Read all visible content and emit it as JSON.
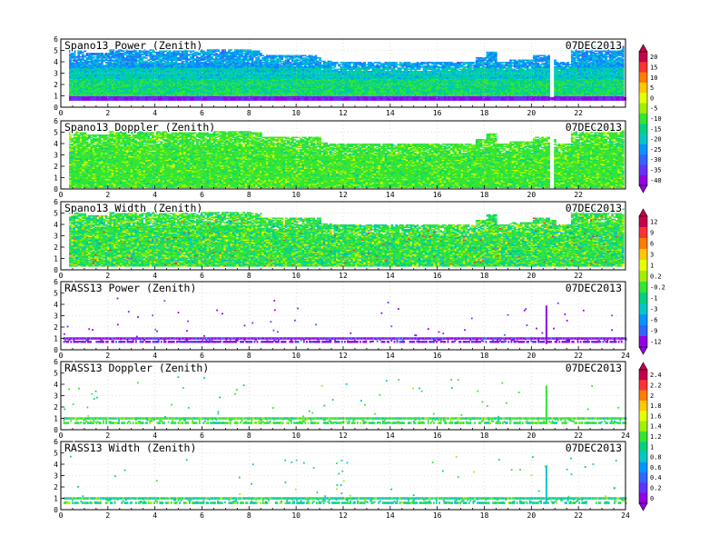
{
  "chart_data": [
    {
      "type": "heatmap",
      "title": "Spano13 Power (Zenith)",
      "date": "07DEC2013",
      "x_ticks": [
        "0",
        "2",
        "4",
        "6",
        "8",
        "10",
        "12",
        "14",
        "16",
        "18",
        "20",
        "22"
      ],
      "y_ticks": [
        "0",
        "1",
        "2",
        "3",
        "4",
        "5",
        "6"
      ],
      "xlim": [
        0,
        24
      ],
      "ylim": [
        0,
        6
      ],
      "grid": true,
      "fill": "power",
      "colorbar": "A",
      "top_profile": [
        [
          0,
          5.0
        ],
        [
          1,
          4.7
        ],
        [
          2,
          5.0
        ],
        [
          8,
          4.9
        ],
        [
          8.5,
          4.6
        ],
        [
          9,
          4.6
        ],
        [
          11,
          4.1
        ],
        [
          11.5,
          4.0
        ],
        [
          13,
          4.0
        ],
        [
          15,
          4.0
        ],
        [
          17,
          4.0
        ],
        [
          17.6,
          4.4
        ],
        [
          18,
          4.8
        ],
        [
          18.5,
          4.0
        ],
        [
          19,
          4.2
        ],
        [
          20,
          4.6
        ],
        [
          20.7,
          4.4
        ],
        [
          21,
          4.0
        ],
        [
          21.6,
          5.0
        ],
        [
          22.5,
          5.3
        ],
        [
          24,
          5.0
        ]
      ],
      "bottom": 0.6
    },
    {
      "type": "heatmap",
      "title": "Spano13 Doppler (Zenith)",
      "date": "07DEC2013",
      "x_ticks": [
        "0",
        "2",
        "4",
        "6",
        "8",
        "10",
        "12",
        "14",
        "16",
        "18",
        "20",
        "22"
      ],
      "y_ticks": [
        "0",
        "1",
        "2",
        "3",
        "4",
        "5",
        "6"
      ],
      "xlim": [
        0,
        24
      ],
      "ylim": [
        0,
        6
      ],
      "grid": true,
      "fill": "doppler",
      "colorbar": "A",
      "top_profile": [
        [
          0,
          5.0
        ],
        [
          1,
          4.7
        ],
        [
          2,
          5.0
        ],
        [
          8,
          4.9
        ],
        [
          8.5,
          4.6
        ],
        [
          9,
          4.6
        ],
        [
          11,
          4.1
        ],
        [
          11.5,
          4.0
        ],
        [
          13,
          4.0
        ],
        [
          15,
          4.0
        ],
        [
          17,
          4.0
        ],
        [
          17.6,
          4.4
        ],
        [
          18,
          4.8
        ],
        [
          18.5,
          4.0
        ],
        [
          19,
          4.2
        ],
        [
          20,
          4.6
        ],
        [
          20.7,
          4.4
        ],
        [
          21,
          4.0
        ],
        [
          21.6,
          5.0
        ],
        [
          22.5,
          5.3
        ],
        [
          24,
          5.0
        ]
      ],
      "bottom": 0.1
    },
    {
      "type": "heatmap",
      "title": "Spano13 Width (Zenith)",
      "date": "07DEC2013",
      "x_ticks": [
        "0",
        "2",
        "4",
        "6",
        "8",
        "10",
        "12",
        "14",
        "16",
        "18",
        "20",
        "22"
      ],
      "y_ticks": [
        "0",
        "1",
        "2",
        "3",
        "4",
        "5",
        "6"
      ],
      "xlim": [
        0,
        24
      ],
      "ylim": [
        0,
        6
      ],
      "grid": true,
      "fill": "width",
      "colorbar": "B",
      "top_profile": [
        [
          0,
          5.0
        ],
        [
          1,
          4.7
        ],
        [
          2,
          5.0
        ],
        [
          8,
          4.9
        ],
        [
          8.5,
          4.6
        ],
        [
          9,
          4.6
        ],
        [
          11,
          4.1
        ],
        [
          11.5,
          4.0
        ],
        [
          13,
          4.0
        ],
        [
          15,
          4.0
        ],
        [
          17,
          4.0
        ],
        [
          17.6,
          4.4
        ],
        [
          18,
          4.8
        ],
        [
          18.5,
          4.0
        ],
        [
          19,
          4.2
        ],
        [
          20,
          4.6
        ],
        [
          20.7,
          4.4
        ],
        [
          21,
          4.0
        ],
        [
          21.6,
          5.0
        ],
        [
          22.5,
          5.3
        ],
        [
          24,
          5.0
        ]
      ],
      "bottom": 0.3
    },
    {
      "type": "heatmap",
      "title": "RASS13 Power (Zenith)",
      "date": "07DEC2013",
      "x_ticks": [
        "0",
        "2",
        "4",
        "6",
        "8",
        "10",
        "12",
        "14",
        "16",
        "18",
        "20",
        "22",
        "24"
      ],
      "y_ticks": [
        "0",
        "1",
        "2",
        "3",
        "4",
        "5",
        "6"
      ],
      "xlim": [
        0,
        24
      ],
      "ylim": [
        0,
        6
      ],
      "grid": true,
      "fill": "rass_power",
      "colorbar": "B",
      "band_low": 0.8,
      "band_high": 1.1,
      "spike_x": 20.6
    },
    {
      "type": "heatmap",
      "title": "RASS13 Doppler (Zenith)",
      "date": "07DEC2013",
      "x_ticks": [
        "0",
        "2",
        "4",
        "6",
        "8",
        "10",
        "12",
        "14",
        "16",
        "18",
        "20",
        "22",
        "24"
      ],
      "y_ticks": [
        "0",
        "1",
        "2",
        "3",
        "4",
        "5",
        "6"
      ],
      "xlim": [
        0,
        24
      ],
      "ylim": [
        0,
        6
      ],
      "grid": true,
      "fill": "rass_doppler",
      "colorbar": "C",
      "band_low": 0.7,
      "band_high": 1.1,
      "spike_x": 20.6
    },
    {
      "type": "heatmap",
      "title": "RASS13 Width (Zenith)",
      "date": "07DEC2013",
      "x_ticks": [
        "0",
        "2",
        "4",
        "6",
        "8",
        "10",
        "12",
        "14",
        "16",
        "18",
        "20",
        "22",
        "24"
      ],
      "y_ticks": [
        "0",
        "1",
        "2",
        "3",
        "4",
        "5",
        "6"
      ],
      "xlim": [
        0,
        24
      ],
      "ylim": [
        0,
        6
      ],
      "grid": true,
      "fill": "rass_width",
      "colorbar": "C",
      "band_low": 0.7,
      "band_high": 1.1,
      "spike_x": 20.6
    }
  ],
  "colorbars": {
    "A": {
      "labels": [
        "20",
        "15",
        "10",
        "5",
        "0",
        "-5",
        "-10",
        "-15",
        "-20",
        "-25",
        "-30",
        "-35",
        "-40"
      ],
      "colors": [
        "#c8004b",
        "#ff3232",
        "#ff7d00",
        "#ffc800",
        "#e6ff00",
        "#a0f000",
        "#32e632",
        "#00d282",
        "#00c8c8",
        "#0096ff",
        "#3264ff",
        "#6432ff",
        "#9600e6"
      ]
    },
    "B": {
      "labels": [
        "12",
        "9",
        "6",
        "3",
        "1",
        "0.2",
        "-0.2",
        "-1",
        "-3",
        "-6",
        "-9",
        "-12"
      ],
      "colors": [
        "#c8004b",
        "#ff3232",
        "#ff7d00",
        "#ffc800",
        "#e6ff00",
        "#a0f000",
        "#32e632",
        "#00d282",
        "#00c8c8",
        "#0096ff",
        "#3264ff",
        "#9600e6"
      ]
    },
    "C": {
      "labels": [
        "2.4",
        "2.2",
        "2",
        "1.8",
        "1.6",
        "1.4",
        "1.2",
        "1",
        "0.8",
        "0.6",
        "0.4",
        "0.2",
        "0"
      ],
      "colors": [
        "#c8004b",
        "#ff3232",
        "#ff7d00",
        "#ffc800",
        "#e6ff00",
        "#a0f000",
        "#32e632",
        "#00d282",
        "#00c8c8",
        "#0096ff",
        "#3264ff",
        "#6432ff",
        "#9600e6"
      ]
    }
  }
}
